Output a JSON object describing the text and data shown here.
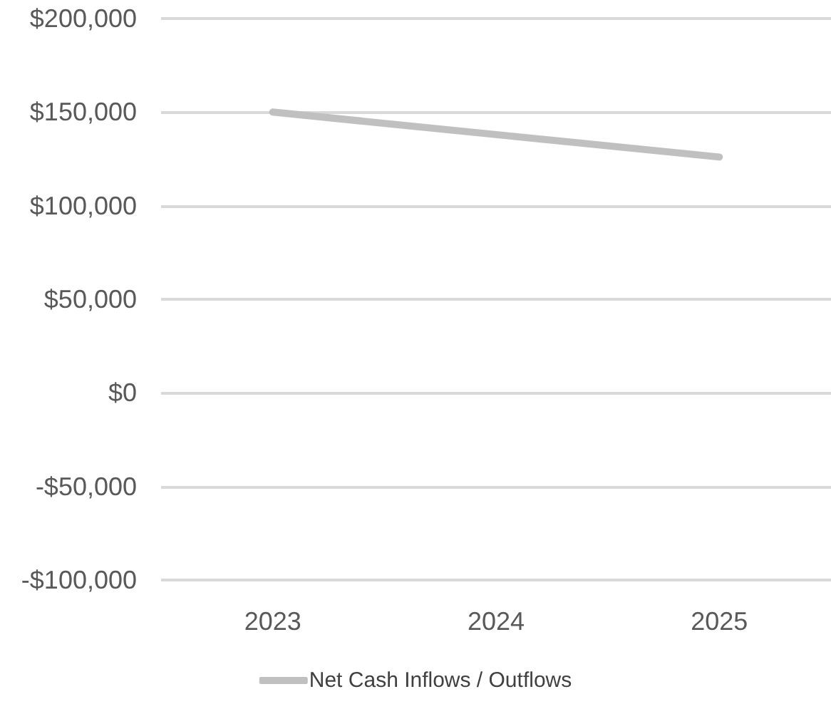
{
  "chart_data": {
    "type": "line",
    "categories": [
      "2023",
      "2024",
      "2025"
    ],
    "series": [
      {
        "name": "Net Cash Inflows / Outflows",
        "color": "#c0c0c0",
        "values": [
          150000,
          138000,
          126000
        ]
      }
    ],
    "ylim": [
      -100000,
      200000
    ],
    "yticks": [
      {
        "value": -100000,
        "label": "-$100,000"
      },
      {
        "value": -50000,
        "label": "-$50,000"
      },
      {
        "value": 0,
        "label": "$0"
      },
      {
        "value": 50000,
        "label": "$50,000"
      },
      {
        "value": 100000,
        "label": "$100,000"
      },
      {
        "value": 150000,
        "label": "$150,000"
      },
      {
        "value": 200000,
        "label": "$200,000"
      }
    ],
    "grid": "y",
    "legend": "bottom",
    "marker": "none",
    "line_style": "solid"
  }
}
